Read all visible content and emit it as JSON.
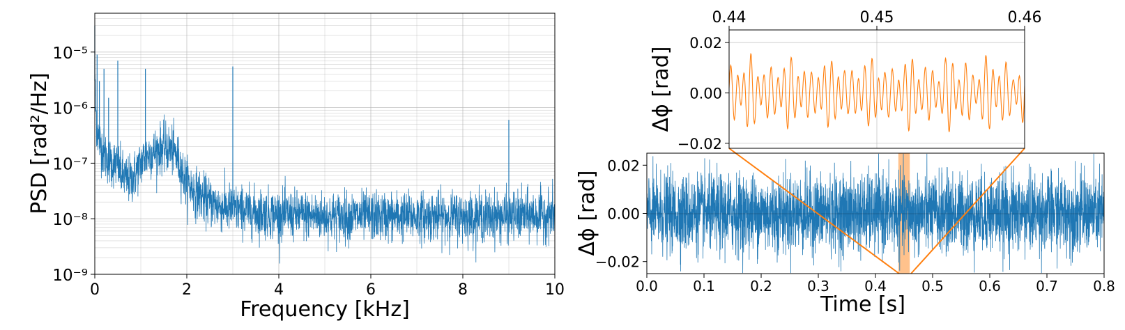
{
  "colors": {
    "series": "#1f77b4",
    "inset": "#ff7f0e",
    "grid": "#b0b0b0",
    "zoom_band": "#ffbb80"
  },
  "chart_data": [
    {
      "type": "line",
      "xlabel": "Frequency [kHz]",
      "ylabel": "PSD [rad²/Hz]",
      "xlim": [
        0,
        10
      ],
      "ylim": [
        1e-09,
        5e-05
      ],
      "yscale": "log",
      "grid": "on",
      "xticks": [
        "0",
        "2",
        "4",
        "6",
        "8",
        "10"
      ],
      "yticks": [
        "10⁻⁹",
        "10⁻⁸",
        "10⁻⁷",
        "10⁻⁶",
        "10⁻⁵"
      ],
      "series": [
        {
          "x": [
            0.0,
            0.02,
            0.05,
            0.1,
            0.2,
            0.3,
            0.4,
            0.5,
            0.6,
            0.7,
            0.8,
            0.9,
            1.0,
            1.1,
            1.2,
            1.3,
            1.4,
            1.5,
            1.6,
            1.7,
            1.8,
            1.9,
            2.0,
            2.2,
            2.4,
            2.6,
            2.8,
            3.0,
            3.5,
            4.0,
            5.0,
            6.0,
            7.0,
            8.0,
            9.0,
            10.0
          ],
          "y": [
            3e-06,
            1e-06,
            4e-07,
            2.5e-07,
            1.5e-07,
            1.1e-07,
            1e-07,
            9e-08,
            6e-08,
            5e-08,
            5e-08,
            7e-08,
            1e-07,
            1.3e-07,
            1.5e-07,
            1.6e-07,
            1.8e-07,
            1.9e-07,
            1.8e-07,
            1.7e-07,
            1.2e-07,
            7e-08,
            4.5e-08,
            3e-08,
            2.2e-08,
            1.8e-08,
            1.6e-08,
            1.5e-08,
            1.3e-08,
            1.2e-08,
            1.1e-08,
            1.1e-08,
            1.1e-08,
            1.1e-08,
            1.1e-08,
            1.2e-08
          ]
        }
      ],
      "peaks": [
        {
          "x": 0.0,
          "y": 3e-05
        },
        {
          "x": 0.05,
          "y": 9e-06
        },
        {
          "x": 0.1,
          "y": 3e-06
        },
        {
          "x": 0.2,
          "y": 5e-06
        },
        {
          "x": 0.3,
          "y": 1.5e-06
        },
        {
          "x": 0.5,
          "y": 7e-06
        },
        {
          "x": 1.1,
          "y": 5e-06
        },
        {
          "x": 3.0,
          "y": 5.5e-06
        },
        {
          "x": 9.0,
          "y": 6e-07
        }
      ]
    },
    {
      "type": "line",
      "xlabel": "Time [s]",
      "ylabel": "Δϕ [rad]",
      "xlim": [
        0.0,
        0.8
      ],
      "ylim": [
        -0.025,
        0.025
      ],
      "xticks": [
        "0.0",
        "0.1",
        "0.2",
        "0.3",
        "0.4",
        "0.5",
        "0.6",
        "0.7",
        "0.8"
      ],
      "yticks": [
        "−0.02",
        "0.00",
        "0.02"
      ],
      "noise_std": 0.008,
      "highlight_span": [
        0.44,
        0.46
      ]
    },
    {
      "type": "line",
      "role": "inset",
      "ylabel": "Δϕ [rad]",
      "xlim": [
        0.44,
        0.46
      ],
      "ylim": [
        -0.022,
        0.025
      ],
      "xticks": [
        "0.44",
        "0.45",
        "0.46"
      ],
      "yticks": [
        "−0.02",
        "0.00",
        "0.02"
      ],
      "amplitude": 0.022
    }
  ]
}
